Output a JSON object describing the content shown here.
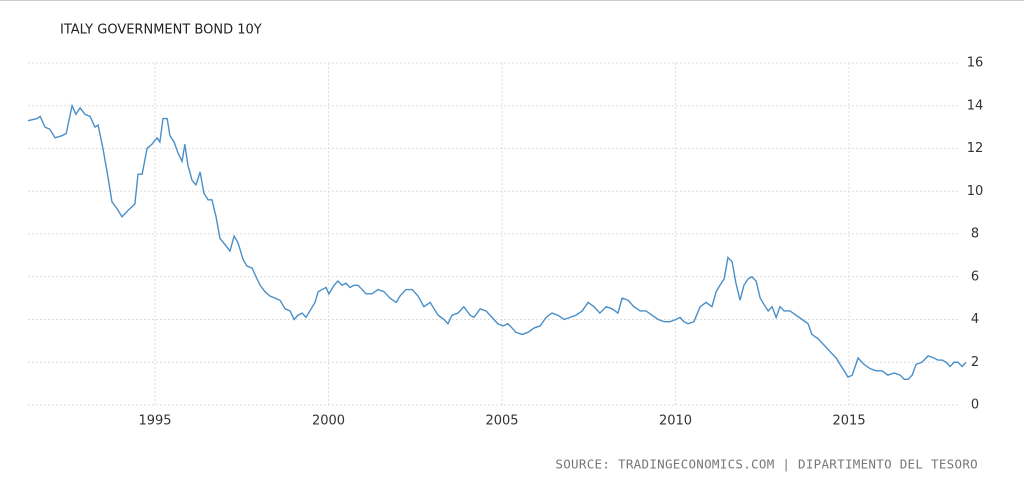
{
  "chart_data": {
    "type": "line",
    "title": "ITALY GOVERNMENT BOND 10Y",
    "source": "SOURCE: TRADINGECONOMICS.COM | DIPARTIMENTO DEL TESORO",
    "x": [
      1991.34,
      1991.6,
      1991.69,
      1991.83,
      1991.97,
      1992.12,
      1992.32,
      1992.44,
      1992.61,
      1992.72,
      1992.84,
      1992.98,
      1993.13,
      1993.27,
      1993.36,
      1993.5,
      1993.62,
      1993.76,
      1993.9,
      1994.05,
      1994.22,
      1994.42,
      1994.51,
      1994.63,
      1994.77,
      1994.91,
      1995.06,
      1995.14,
      1995.23,
      1995.35,
      1995.43,
      1995.55,
      1995.66,
      1995.78,
      1995.86,
      1995.95,
      1996.07,
      1996.18,
      1996.3,
      1996.41,
      1996.53,
      1996.64,
      1996.76,
      1996.87,
      1997.02,
      1997.16,
      1997.28,
      1997.39,
      1997.54,
      1997.65,
      1997.8,
      1997.91,
      1998.03,
      1998.17,
      1998.31,
      1998.46,
      1998.6,
      1998.75,
      1998.89,
      1999.01,
      1999.12,
      1999.24,
      1999.35,
      1999.5,
      1999.61,
      1999.7,
      1999.81,
      1999.93,
      2000.01,
      2000.16,
      2000.27,
      2000.39,
      2000.5,
      2000.62,
      2000.73,
      2000.85,
      2000.97,
      2001.08,
      2001.25,
      2001.43,
      2001.6,
      2001.77,
      2001.95,
      2002.06,
      2002.23,
      2002.41,
      2002.58,
      2002.75,
      2002.93,
      2003.04,
      2003.16,
      2003.33,
      2003.44,
      2003.56,
      2003.73,
      2003.9,
      2004.08,
      2004.19,
      2004.37,
      2004.54,
      2004.71,
      2004.88,
      2005.03,
      2005.17,
      2005.29,
      2005.4,
      2005.58,
      2005.75,
      2005.92,
      2006.1,
      2006.27,
      2006.44,
      2006.61,
      2006.79,
      2006.96,
      2007.13,
      2007.31,
      2007.48,
      2007.65,
      2007.82,
      2008.0,
      2008.17,
      2008.34,
      2008.46,
      2008.63,
      2008.8,
      2008.98,
      2009.15,
      2009.32,
      2009.5,
      2009.67,
      2009.84,
      2010.01,
      2010.13,
      2010.24,
      2010.36,
      2010.53,
      2010.71,
      2010.88,
      2011.05,
      2011.17,
      2011.28,
      2011.4,
      2011.51,
      2011.63,
      2011.74,
      2011.86,
      2011.97,
      2012.09,
      2012.2,
      2012.32,
      2012.44,
      2012.55,
      2012.67,
      2012.78,
      2012.9,
      2013.01,
      2013.13,
      2013.3,
      2013.47,
      2013.65,
      2013.82,
      2013.93,
      2014.11,
      2014.28,
      2014.45,
      2014.63,
      2014.74,
      2014.86,
      2014.97,
      2015.09,
      2015.26,
      2015.43,
      2015.61,
      2015.78,
      2015.95,
      2016.12,
      2016.3,
      2016.47,
      2016.59,
      2016.7,
      2016.82,
      2016.93,
      2017.1,
      2017.28,
      2017.45,
      2017.56,
      2017.68,
      2017.8,
      2017.91,
      2018.03,
      2018.14,
      2018.26,
      2018.37
    ],
    "series": [
      {
        "name": "ITALY GOVERNMENT BOND 10Y",
        "color": "#4a8fc8",
        "values": [
          13.3,
          13.4,
          13.5,
          13.0,
          12.9,
          12.5,
          12.6,
          12.7,
          14.0,
          13.6,
          13.9,
          13.6,
          13.5,
          13.0,
          13.1,
          12.0,
          10.9,
          9.5,
          9.2,
          8.8,
          9.1,
          9.4,
          10.8,
          10.8,
          12.0,
          12.2,
          12.5,
          12.3,
          13.4,
          13.4,
          12.6,
          12.3,
          11.8,
          11.4,
          12.2,
          11.2,
          10.5,
          10.3,
          10.9,
          9.9,
          9.6,
          9.6,
          8.8,
          7.8,
          7.5,
          7.2,
          7.9,
          7.6,
          6.8,
          6.5,
          6.4,
          6.0,
          5.6,
          5.3,
          5.1,
          5.0,
          4.9,
          4.5,
          4.4,
          4.0,
          4.2,
          4.3,
          4.1,
          4.5,
          4.8,
          5.3,
          5.4,
          5.5,
          5.2,
          5.6,
          5.8,
          5.6,
          5.7,
          5.5,
          5.6,
          5.6,
          5.4,
          5.2,
          5.2,
          5.4,
          5.3,
          5.0,
          4.8,
          5.1,
          5.4,
          5.4,
          5.1,
          4.6,
          4.8,
          4.5,
          4.2,
          4.0,
          3.8,
          4.2,
          4.3,
          4.6,
          4.2,
          4.1,
          4.5,
          4.4,
          4.1,
          3.8,
          3.7,
          3.8,
          3.6,
          3.4,
          3.3,
          3.4,
          3.6,
          3.7,
          4.1,
          4.3,
          4.2,
          4.0,
          4.1,
          4.2,
          4.4,
          4.8,
          4.6,
          4.3,
          4.6,
          4.5,
          4.3,
          5.0,
          4.9,
          4.6,
          4.4,
          4.4,
          4.2,
          4.0,
          3.9,
          3.9,
          4.0,
          4.1,
          3.9,
          3.8,
          3.9,
          4.6,
          4.8,
          4.6,
          5.3,
          5.6,
          5.9,
          6.9,
          6.7,
          5.7,
          4.9,
          5.6,
          5.9,
          6.0,
          5.8,
          5.0,
          4.7,
          4.4,
          4.6,
          4.1,
          4.6,
          4.4,
          4.4,
          4.2,
          4.0,
          3.8,
          3.3,
          3.1,
          2.8,
          2.5,
          2.2,
          1.9,
          1.6,
          1.3,
          1.4,
          2.2,
          1.9,
          1.7,
          1.6,
          1.6,
          1.4,
          1.5,
          1.4,
          1.2,
          1.2,
          1.4,
          1.9,
          2.0,
          2.3,
          2.2,
          2.1,
          2.1,
          2.0,
          1.8,
          2.0,
          2.0,
          1.8,
          2.0
        ]
      }
    ],
    "xlim": [
      1991.34,
      2018.37
    ],
    "xticks": [
      1995,
      2000,
      2005,
      2010,
      2015
    ],
    "ylim": [
      0,
      16
    ],
    "yticks": [
      0,
      2,
      4,
      6,
      8,
      10,
      12,
      14,
      16
    ],
    "grid": true
  }
}
